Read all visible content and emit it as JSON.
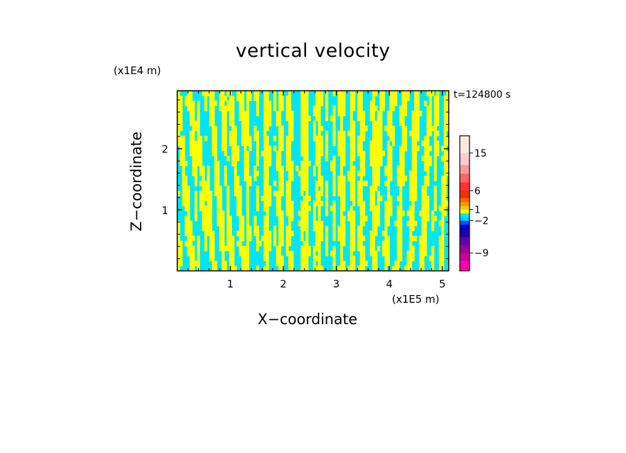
{
  "chart_data": {
    "type": "heatmap",
    "title": "vertical velocity",
    "xlabel": "X−coordinate",
    "ylabel": "Z−coordinate",
    "x_scale_label": "(x1E5 m)",
    "y_scale_label": "(x1E4 m)",
    "time_label": "t=124800 s",
    "xlim": [
      0,
      5.12
    ],
    "ylim": [
      0,
      2.95
    ],
    "x_ticks": [
      1,
      2,
      3,
      4,
      5
    ],
    "x_tick_labels": [
      "1",
      "2",
      "3",
      "4",
      "5"
    ],
    "y_ticks": [
      1,
      2
    ],
    "y_tick_labels": [
      "1",
      "2"
    ],
    "field": {
      "description_values": "alternating positive/negative vertical velocity cells",
      "positive_color": "#ffff00",
      "negative_color": "#00e5f5"
    },
    "colorbar": {
      "levels": [
        -12,
        -10.5,
        -9,
        -7.5,
        -6,
        -4.5,
        -3,
        -2,
        -1,
        0,
        1,
        2,
        3,
        4.5,
        6,
        7.5,
        9,
        12,
        15,
        18,
        24
      ],
      "colors": [
        "#ff00aa",
        "#cc0099",
        "#990099",
        "#6600aa",
        "#2200aa",
        "#0000cc",
        "#0055ff",
        "#00ccff",
        "#00e5f5",
        "#ffff00",
        "#ffcc00",
        "#ff9900",
        "#ff6600",
        "#ee3300",
        "#ff3333",
        "#ff6666",
        "#ff9999",
        "#ffcccc",
        "#ffe8e0"
      ],
      "tick_values": [
        15,
        6,
        1,
        -2,
        -9
      ],
      "tick_labels": [
        "15",
        "6",
        "1",
        "−2",
        "−9"
      ]
    }
  }
}
